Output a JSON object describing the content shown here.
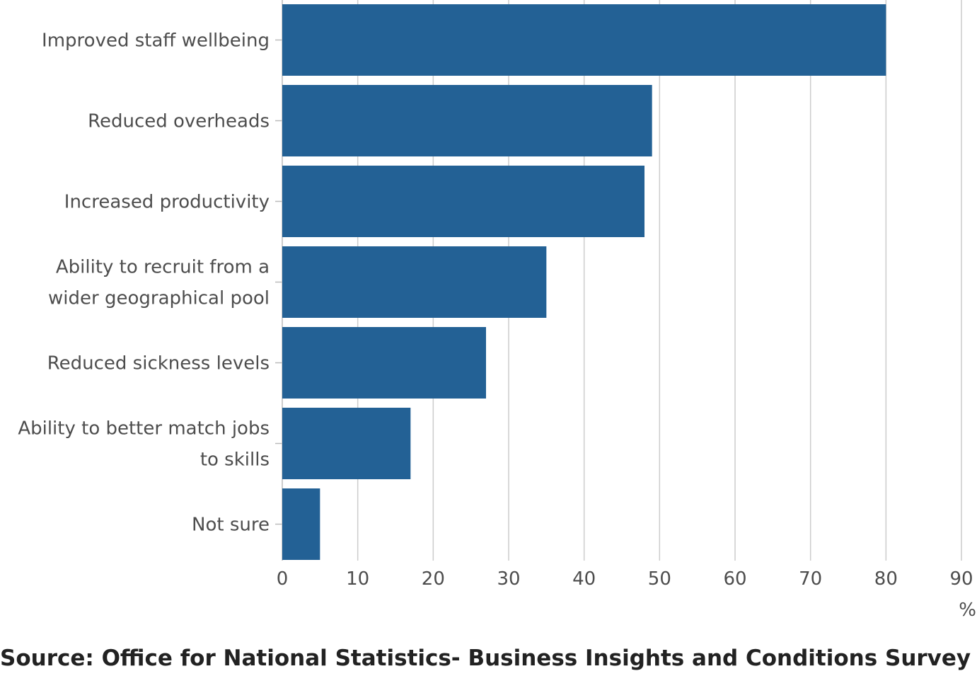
{
  "chart_data": {
    "type": "bar",
    "orientation": "horizontal",
    "categories": [
      [
        "Improved staff wellbeing"
      ],
      [
        "Reduced overheads"
      ],
      [
        "Increased productivity"
      ],
      [
        "Ability to recruit from a",
        "wider geographical pool"
      ],
      [
        "Reduced sickness levels"
      ],
      [
        "Ability to better match jobs",
        "to skills"
      ],
      [
        "Not sure"
      ]
    ],
    "values": [
      80,
      49,
      48,
      35,
      27,
      17,
      5
    ],
    "xlim": [
      0,
      90
    ],
    "x_ticks": [
      "0",
      "10",
      "20",
      "30",
      "40",
      "50",
      "60",
      "70",
      "80",
      "90"
    ],
    "x_unit": "%",
    "grid": true,
    "bar_color": "#236195",
    "grid_color": "#cccccc"
  },
  "source": "Source: Office for National Statistics- Business Insights and Conditions Survey"
}
